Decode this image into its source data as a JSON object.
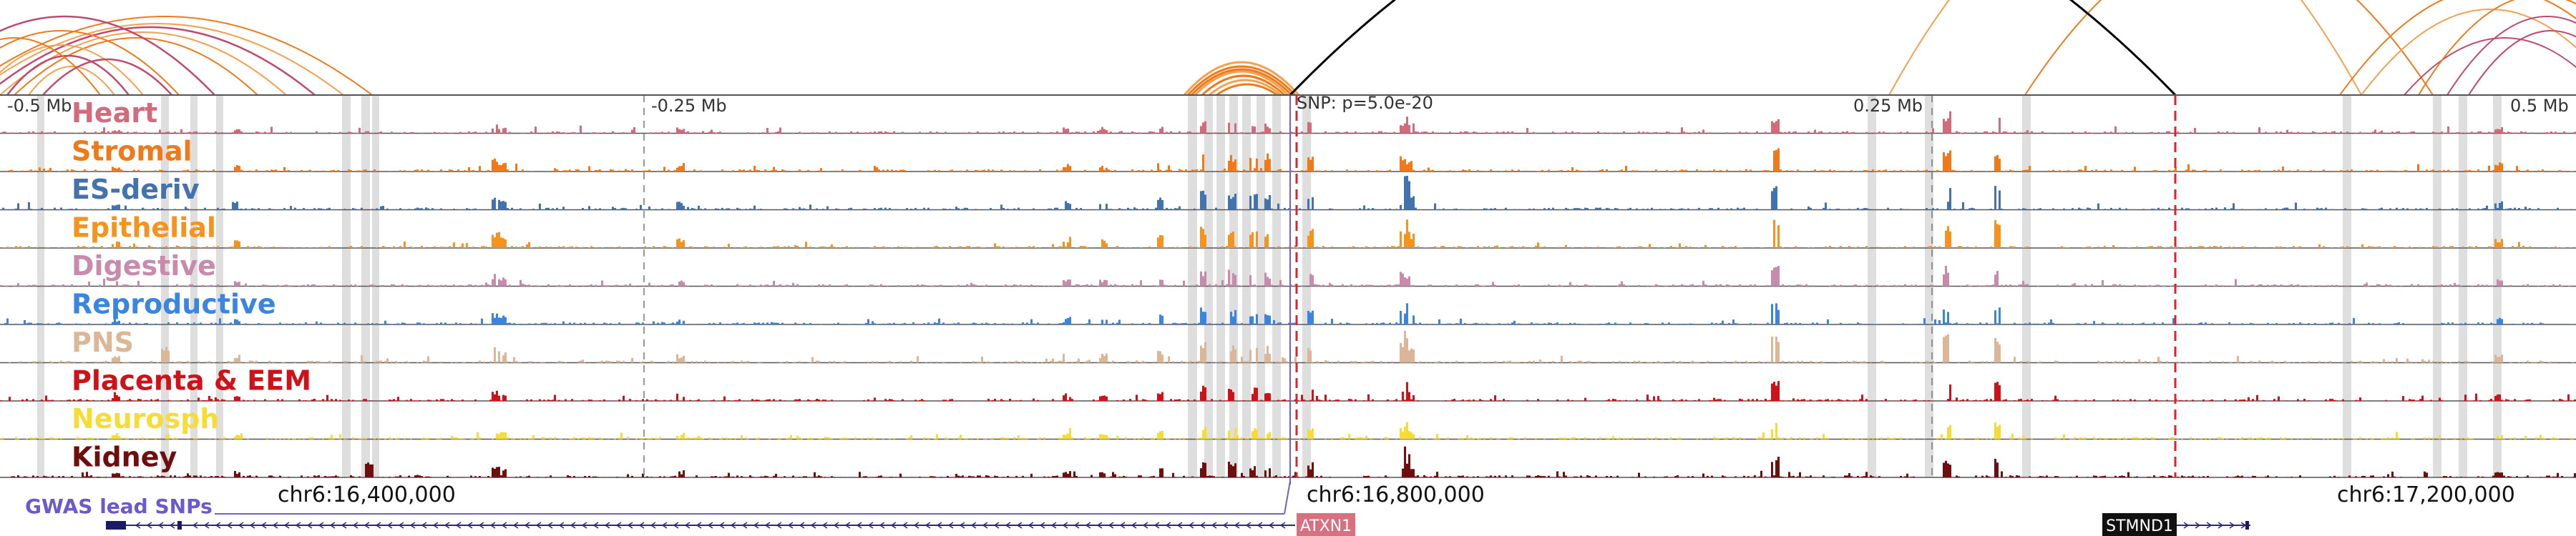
{
  "axis_labels": [
    "-0.5 Mb",
    "-0.25 Mb",
    "0.25 Mb",
    "0.5 Mb"
  ],
  "snp": {
    "label": "SNP: p=5.0e-20",
    "color": "#dd2233"
  },
  "tracks": [
    {
      "name": "Heart",
      "color": "#d26b7c"
    },
    {
      "name": "Stromal",
      "color": "#f07a1a"
    },
    {
      "name": "ES-deriv",
      "color": "#4373ad"
    },
    {
      "name": "Epithelial",
      "color": "#f6931d"
    },
    {
      "name": "Digestive",
      "color": "#c98bab"
    },
    {
      "name": "Reproductive",
      "color": "#3a85e2"
    },
    {
      "name": "PNS",
      "color": "#dcb797"
    },
    {
      "name": "Placenta & EEM",
      "color": "#d01218"
    },
    {
      "name": "Neurosph",
      "color": "#f5dd36"
    },
    {
      "name": "Kidney",
      "color": "#6e0e0e"
    }
  ],
  "gwas": {
    "label": "GWAS lead SNPs",
    "color": "#6a5acd"
  },
  "coordinates": [
    "chr6:16,400,000",
    "chr6:16,800,000",
    "chr6:17,200,000"
  ],
  "genes": [
    {
      "name": "ATXN1",
      "color": "#d9707f"
    },
    {
      "name": "STMND1",
      "color": "#111111"
    }
  ],
  "loop_colors": [
    "#f07a1a",
    "#f6a04d",
    "#c04a6e",
    "#000000"
  ]
}
